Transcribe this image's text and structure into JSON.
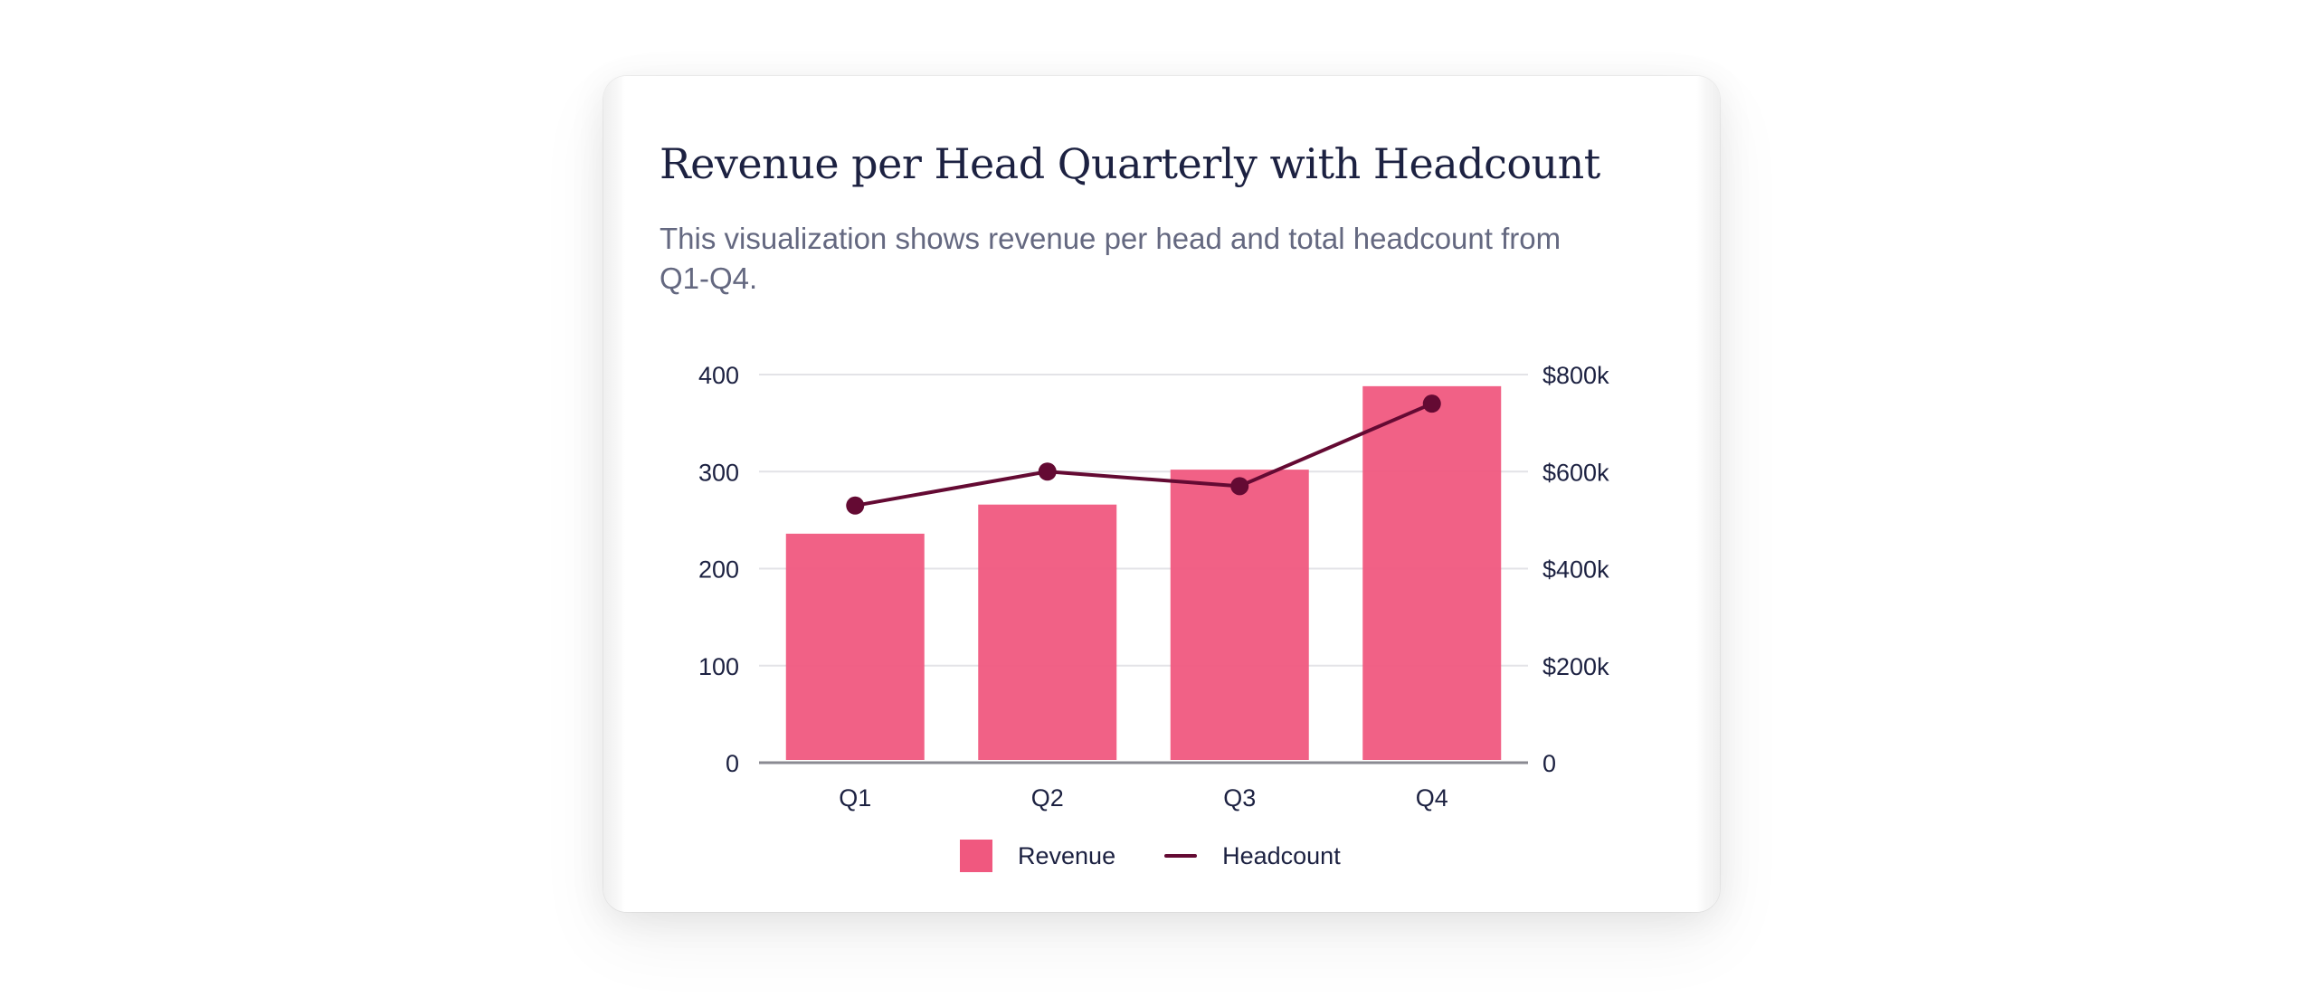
{
  "card": {
    "title": "Revenue per Head Quarterly with Headcount",
    "subtitle": "This visualization shows revenue per head and total headcount from Q1-Q4."
  },
  "chart_data": {
    "type": "bar",
    "title": "Revenue per Head Quarterly with Headcount",
    "subtitle": "This visualization shows revenue per head and total headcount from Q1-Q4.",
    "categories": [
      "Q1",
      "Q2",
      "Q3",
      "Q4"
    ],
    "series": [
      {
        "name": "Revenue",
        "type": "bar",
        "axis": "right",
        "values": [
          472000,
          532000,
          604000,
          776000
        ],
        "color": "#f0587f"
      },
      {
        "name": "Headcount",
        "type": "line",
        "axis": "left",
        "values": [
          265,
          300,
          285,
          370
        ],
        "color": "#640a33"
      }
    ],
    "y_left": {
      "ylim": [
        0,
        400
      ],
      "ticks": [
        0,
        100,
        200,
        300,
        400
      ],
      "tick_labels": [
        "0",
        "100",
        "200",
        "300",
        "400"
      ]
    },
    "y_right": {
      "ylim": [
        0,
        800000
      ],
      "ticks": [
        0,
        200000,
        400000,
        600000,
        800000
      ],
      "tick_labels": [
        "0",
        "$200k",
        "$400k",
        "$600k",
        "$800k"
      ]
    },
    "grid": true,
    "legend": "bottom-center",
    "xlabel": "",
    "ylabel": ""
  },
  "legend": {
    "items": [
      {
        "label": "Revenue",
        "color": "#f0587f",
        "marker": "square"
      },
      {
        "label": "Headcount",
        "color": "#640a33",
        "marker": "line"
      }
    ]
  },
  "colors": {
    "title": "#1c2141",
    "subtitle": "#646880",
    "grid": "#e3e3e7",
    "baseline": "#8a8a92",
    "axis_text": "#1c2141"
  }
}
